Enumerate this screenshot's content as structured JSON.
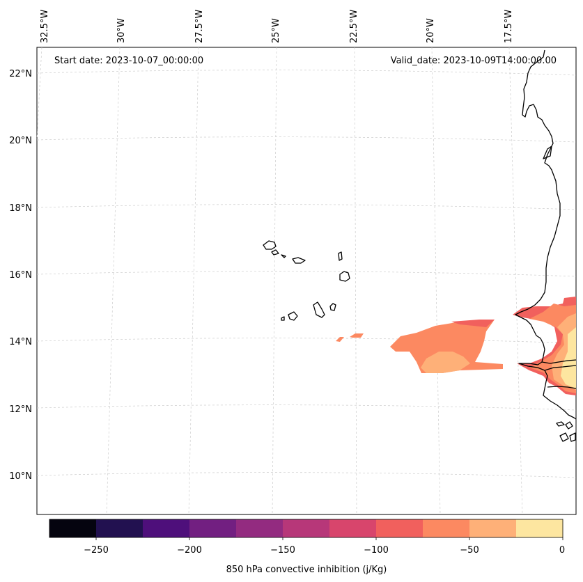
{
  "map": {
    "start_date": "Start date: 2023-10-07_00:00:00",
    "valid_date": "Valid_date: 2023-10-09T14:00:00.00",
    "lon_labels": [
      "32.5°W",
      "30°W",
      "27.5°W",
      "25°W",
      "22.5°W",
      "20°W",
      "17.5°W"
    ],
    "lat_labels": [
      "22°N",
      "20°N",
      "18°N",
      "16°N",
      "14°N",
      "12°N",
      "10°N"
    ],
    "coastline_color": "#000000",
    "gridline_color": "#cccccc"
  },
  "colorbar": {
    "title": "850 hPa convective inhibition (j/Kg)",
    "tick_labels": [
      "−250",
      "−200",
      "−150",
      "−100",
      "−50",
      "0"
    ],
    "levels": [
      -275,
      -250,
      -225,
      -200,
      -175,
      -150,
      -125,
      -100,
      -75,
      -50,
      -25,
      0
    ],
    "colors": [
      "#05040f",
      "#221150",
      "#4e0f7b",
      "#721f81",
      "#932b80",
      "#b73779",
      "#d8456c",
      "#f1605d",
      "#fc8961",
      "#feb078",
      "#fde6a0"
    ]
  }
}
